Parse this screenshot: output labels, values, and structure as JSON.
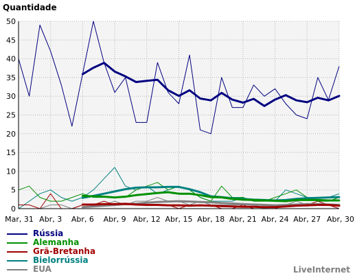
{
  "chart_data": {
    "type": "line",
    "ylabel": "Quantidade",
    "ylim": [
      0,
      50
    ],
    "yticks": [
      0,
      5,
      10,
      15,
      20,
      25,
      30,
      35,
      40,
      45,
      50
    ],
    "grid": true,
    "legend_position": "bottom-left",
    "categories": [
      "Mar, 31",
      "Abr, 1",
      "Abr, 2",
      "Abr, 3",
      "Abr, 4",
      "Abr, 5",
      "Abr, 6",
      "Abr, 7",
      "Abr, 8",
      "Abr, 9",
      "Abr, 10",
      "Abr, 11",
      "Abr, 12",
      "Abr, 13",
      "Abr, 14",
      "Abr, 15",
      "Abr, 16",
      "Abr, 17",
      "Abr, 18",
      "Abr, 19",
      "Abr, 20",
      "Abr, 21",
      "Abr, 22",
      "Abr, 23",
      "Abr, 24",
      "Abr, 25",
      "Abr, 26",
      "Abr, 27",
      "Abr, 28",
      "Abr, 29",
      "Abr, 30"
    ],
    "tick_labels": [
      "Mar, 31",
      "Abr, 3",
      "Abr, 6",
      "Abr, 9",
      "Abr, 12",
      "Abr, 15",
      "Abr, 18",
      "Abr, 21",
      "Abr, 24",
      "Abr, 27",
      "Abr, 30"
    ],
    "series": [
      {
        "name": "Rússia",
        "color": "#000080",
        "values": [
          40,
          30,
          49,
          42,
          33,
          22,
          36,
          50,
          39,
          31,
          35,
          23,
          23,
          39,
          31,
          28,
          41,
          21,
          20,
          35,
          27,
          27,
          33,
          30,
          32,
          28,
          25,
          24,
          35,
          29,
          38
        ],
        "average": [
          null,
          null,
          null,
          null,
          null,
          null,
          35.9,
          37.6,
          38.9,
          36.6,
          35.3,
          33.8,
          34.1,
          34.4,
          31.6,
          30.1,
          31.6,
          29.4,
          28.9,
          30.9,
          29.1,
          28.3,
          29.3,
          27.4,
          29.1,
          30.3,
          28.9,
          28.4,
          29.6,
          28.9,
          30.1
        ]
      },
      {
        "name": "Alemanha",
        "color": "#009000",
        "values": [
          5,
          6,
          3,
          2,
          2,
          3,
          4,
          3,
          3,
          3,
          3,
          5,
          6,
          7,
          5,
          6,
          5,
          3,
          2,
          6,
          3,
          3,
          2,
          2,
          3,
          4,
          5,
          3,
          2,
          2,
          3
        ],
        "average": [
          null,
          null,
          null,
          null,
          null,
          null,
          3.4,
          3.3,
          3.2,
          3.0,
          3.2,
          3.6,
          3.9,
          4.2,
          4.4,
          4.0,
          4.0,
          3.6,
          3.1,
          3.0,
          2.6,
          2.4,
          2.3,
          2.2,
          2.1,
          2.0,
          2.3,
          2.3,
          2.3,
          2.2,
          2.2
        ]
      },
      {
        "name": "Grã-Bretanha",
        "color": "#a00000",
        "values": [
          1,
          1,
          0,
          4,
          0,
          0,
          1,
          1,
          2,
          1,
          1,
          1,
          1,
          1,
          1,
          0,
          1,
          1,
          1,
          0,
          0,
          1,
          0,
          0,
          0,
          1,
          1,
          1,
          2,
          1,
          0
        ],
        "average": [
          null,
          null,
          null,
          null,
          null,
          null,
          1.1,
          1.1,
          1.2,
          1.2,
          1.3,
          1.1,
          1.0,
          1.0,
          0.9,
          0.9,
          0.8,
          0.9,
          0.8,
          0.7,
          0.6,
          0.5,
          0.5,
          0.4,
          0.4,
          0.6,
          0.8,
          0.9,
          1.0,
          1.0,
          0.8
        ]
      },
      {
        "name": "Bielorrússia",
        "color": "#008080",
        "values": [
          0,
          2,
          4,
          5,
          3,
          2,
          3,
          5,
          8,
          11,
          6,
          5,
          6,
          4,
          5,
          6,
          5,
          3,
          2,
          2,
          2,
          3,
          2,
          2,
          2,
          5,
          4,
          3,
          3,
          3,
          4
        ],
        "average": [
          null,
          null,
          null,
          null,
          null,
          null,
          2.9,
          3.4,
          4.0,
          4.6,
          5.2,
          5.6,
          5.7,
          5.7,
          5.8,
          5.8,
          5.2,
          4.4,
          3.3,
          3.1,
          2.8,
          2.6,
          2.4,
          2.3,
          2.2,
          2.3,
          2.6,
          2.8,
          2.9,
          3.0,
          3.1
        ]
      },
      {
        "name": "EUA",
        "color": "#808080",
        "values": [
          0,
          0,
          0,
          1,
          1,
          0,
          1,
          1,
          1,
          2,
          1,
          2,
          2,
          3,
          2,
          2,
          1,
          2,
          1,
          1,
          1,
          1,
          1,
          0,
          1,
          1,
          2,
          1,
          1,
          1,
          1
        ],
        "average": [
          null,
          null,
          null,
          null,
          null,
          null,
          0.4,
          0.6,
          0.8,
          1.0,
          1.2,
          1.3,
          1.6,
          1.8,
          1.9,
          2.0,
          1.9,
          1.8,
          1.7,
          1.5,
          1.4,
          1.2,
          1.1,
          1.0,
          0.9,
          1.0,
          1.1,
          1.2,
          1.2,
          1.1,
          1.0
        ]
      }
    ]
  },
  "brand": "LiveInternet"
}
